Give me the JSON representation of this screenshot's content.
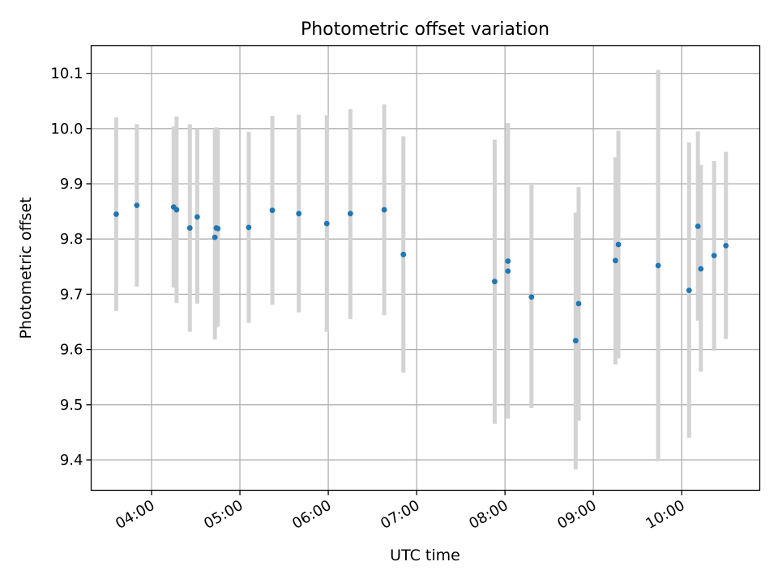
{
  "chart_data": {
    "type": "scatter",
    "title": "Photometric offset variation",
    "xlabel": "UTC time",
    "ylabel": "Photometric offset",
    "x_tick_labels": [
      "04:00",
      "05:00",
      "06:00",
      "07:00",
      "08:00",
      "09:00",
      "10:00"
    ],
    "x_ticks": [
      "04:00",
      "05:00",
      "06:00",
      "07:00",
      "08:00",
      "09:00",
      "10:00"
    ],
    "y_ticks": [
      9.4,
      9.5,
      9.6,
      9.7,
      9.8,
      9.9,
      10.0,
      10.1
    ],
    "y_tick_labels": [
      "9.4",
      "9.5",
      "9.6",
      "9.7",
      "9.8",
      "9.9",
      "10.0",
      "10.1"
    ],
    "xlim": [
      "03:19",
      "10:53"
    ],
    "ylim": [
      9.345,
      10.15
    ],
    "grid": true,
    "point_color": "#1f77b4",
    "errorbar_color": "#d3d3d3",
    "points": [
      {
        "x": "03:36",
        "y": 9.845,
        "low": 9.67,
        "high": 10.02
      },
      {
        "x": "03:50",
        "y": 9.861,
        "low": 9.714,
        "high": 10.008
      },
      {
        "x": "04:15",
        "y": 9.858,
        "low": 9.712,
        "high": 10.004
      },
      {
        "x": "04:17",
        "y": 9.853,
        "low": 9.684,
        "high": 10.022
      },
      {
        "x": "04:26",
        "y": 9.82,
        "low": 9.632,
        "high": 10.008
      },
      {
        "x": "04:31",
        "y": 9.84,
        "low": 9.683,
        "high": 10.0
      },
      {
        "x": "04:43",
        "y": 9.803,
        "low": 9.618,
        "high": 9.998
      },
      {
        "x": "04:44",
        "y": 9.82,
        "low": 9.64,
        "high": 10.002
      },
      {
        "x": "04:45",
        "y": 9.819,
        "low": 9.642,
        "high": 9.998
      },
      {
        "x": "05:06",
        "y": 9.821,
        "low": 9.648,
        "high": 9.994
      },
      {
        "x": "05:22",
        "y": 9.852,
        "low": 9.681,
        "high": 10.023
      },
      {
        "x": "05:40",
        "y": 9.846,
        "low": 9.667,
        "high": 10.025
      },
      {
        "x": "05:59",
        "y": 9.828,
        "low": 9.632,
        "high": 10.024
      },
      {
        "x": "06:15",
        "y": 9.846,
        "low": 9.655,
        "high": 10.035
      },
      {
        "x": "06:38",
        "y": 9.853,
        "low": 9.662,
        "high": 10.044
      },
      {
        "x": "06:51",
        "y": 9.772,
        "low": 9.558,
        "high": 9.986
      },
      {
        "x": "07:53",
        "y": 9.723,
        "low": 9.465,
        "high": 9.98
      },
      {
        "x": "08:02",
        "y": 9.76,
        "low": 9.51,
        "high": 10.01
      },
      {
        "x": "08:02",
        "y": 9.742,
        "low": 9.475,
        "high": 10.008
      },
      {
        "x": "08:18",
        "y": 9.695,
        "low": 9.494,
        "high": 9.9
      },
      {
        "x": "08:48",
        "y": 9.616,
        "low": 9.383,
        "high": 9.848
      },
      {
        "x": "08:50",
        "y": 9.683,
        "low": 9.471,
        "high": 9.894
      },
      {
        "x": "09:15",
        "y": 9.761,
        "low": 9.573,
        "high": 9.948
      },
      {
        "x": "09:17",
        "y": 9.79,
        "low": 9.584,
        "high": 9.996
      },
      {
        "x": "09:44",
        "y": 9.752,
        "low": 9.398,
        "high": 10.106
      },
      {
        "x": "10:05",
        "y": 9.707,
        "low": 9.44,
        "high": 9.975
      },
      {
        "x": "10:11",
        "y": 9.823,
        "low": 9.652,
        "high": 9.995
      },
      {
        "x": "10:13",
        "y": 9.746,
        "low": 9.56,
        "high": 9.934
      },
      {
        "x": "10:22",
        "y": 9.77,
        "low": 9.598,
        "high": 9.941
      },
      {
        "x": "10:30",
        "y": 9.788,
        "low": 9.619,
        "high": 9.958
      }
    ]
  }
}
